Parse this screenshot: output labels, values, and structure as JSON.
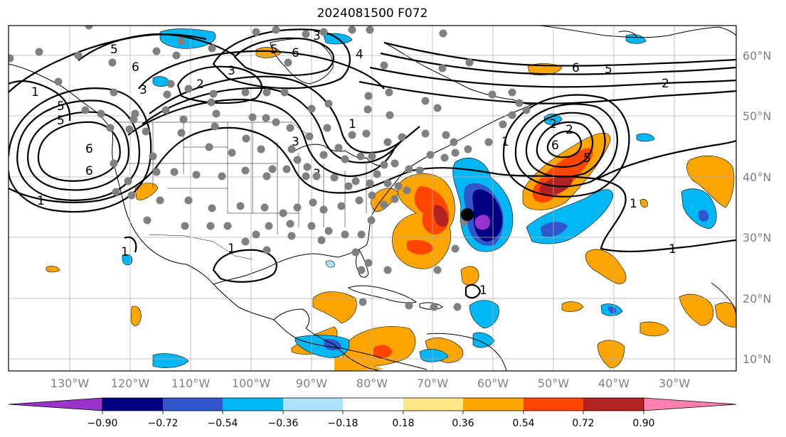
{
  "title": "2024081500 F072",
  "map": {
    "lon_labels": [
      "130°W",
      "120°W",
      "110°W",
      "100°W",
      "90°W",
      "80°W",
      "70°W",
      "60°W",
      "50°W",
      "40°W",
      "30°W"
    ],
    "lat_labels": [
      "60°N",
      "50°N",
      "40°N",
      "30°N",
      "20°N",
      "10°N"
    ],
    "contour_labels": [
      "1",
      "5",
      "6",
      "5",
      "6",
      "2",
      "3",
      "5",
      "6",
      "3",
      "6",
      "2",
      "1",
      "6",
      "5",
      "4",
      "5",
      "3",
      "5",
      "6",
      "2",
      "1",
      "3",
      "1",
      "1",
      "1",
      "2",
      "3",
      "1",
      "1",
      "1"
    ],
    "storm_marker": "black-dot",
    "station_marker": "gray-dot"
  },
  "colorbar": {
    "ticks": [
      "−0.90",
      "−0.72",
      "−0.54",
      "−0.36",
      "−0.18",
      "0.18",
      "0.36",
      "0.54",
      "0.72",
      "0.90"
    ],
    "colors": {
      "lt_-0.90": "#9933cc",
      "-0.90_-0.72": "#000080",
      "-0.72_-0.54": "#3355cc",
      "-0.54_-0.36": "#00b7f5",
      "-0.36_-0.18": "#aee2fc",
      "-0.18_0.18": "#ffffff",
      "0.18_0.36": "#ffe88a",
      "0.36_0.54": "#ffa500",
      "0.54_0.72": "#ff4500",
      "0.72_0.90": "#b22222",
      "gt_0.90": "#ff80b0"
    }
  }
}
